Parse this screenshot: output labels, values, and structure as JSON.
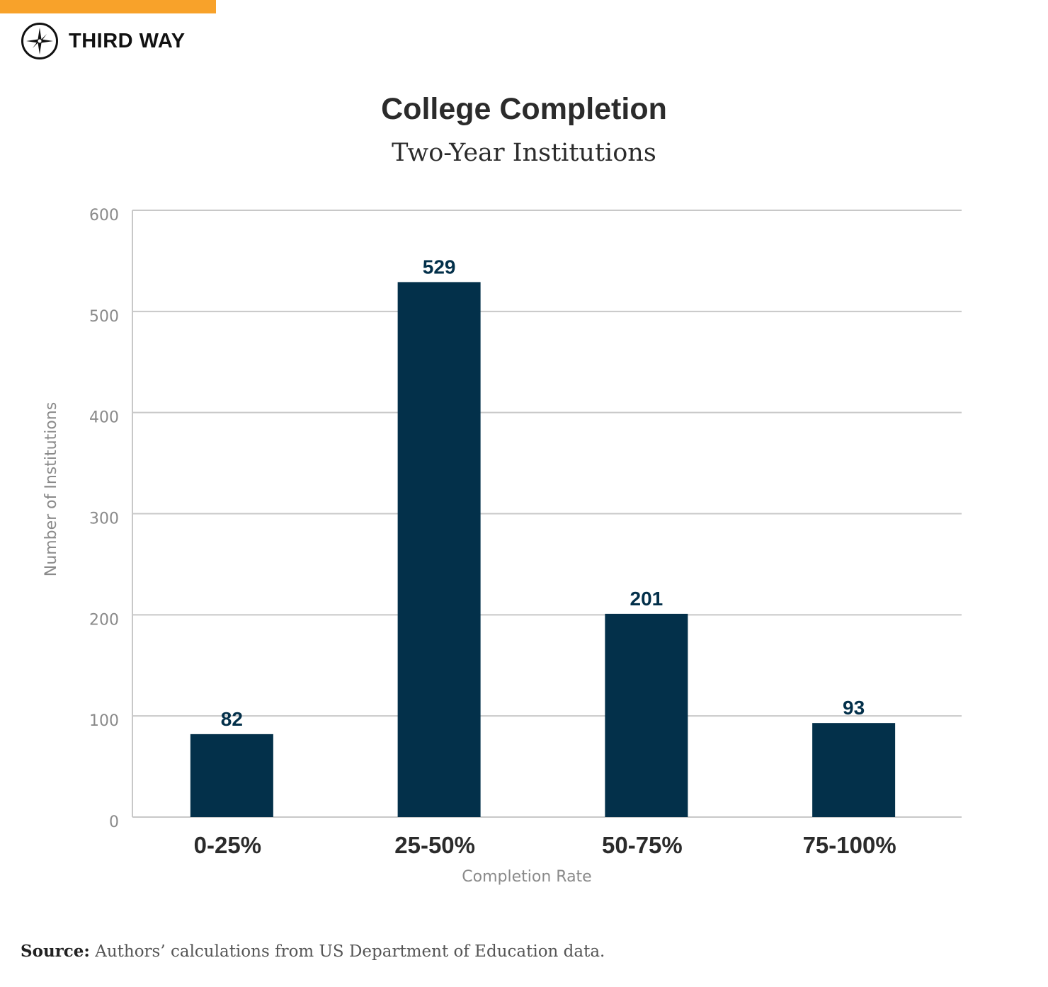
{
  "brand": {
    "name": "THIRD WAY",
    "accent": "#f8a22a"
  },
  "title": "College Completion",
  "subtitle": "Two-Year Institutions",
  "source": {
    "label": "Source:",
    "text": "Authors’ calculations from US Department of Education data."
  },
  "chart_data": {
    "type": "bar",
    "title": "College Completion",
    "subtitle": "Two-Year Institutions",
    "categories": [
      "0-25%",
      "25-50%",
      "50-75%",
      "75-100%"
    ],
    "values": [
      82,
      529,
      201,
      93
    ],
    "xlabel": "Completion Rate",
    "ylabel": "Number of Institutions",
    "ylim": [
      0,
      600
    ],
    "yticks": [
      0,
      100,
      200,
      300,
      400,
      500,
      600
    ],
    "grid": true,
    "bar_color": "#03304a",
    "data_labels": true
  }
}
